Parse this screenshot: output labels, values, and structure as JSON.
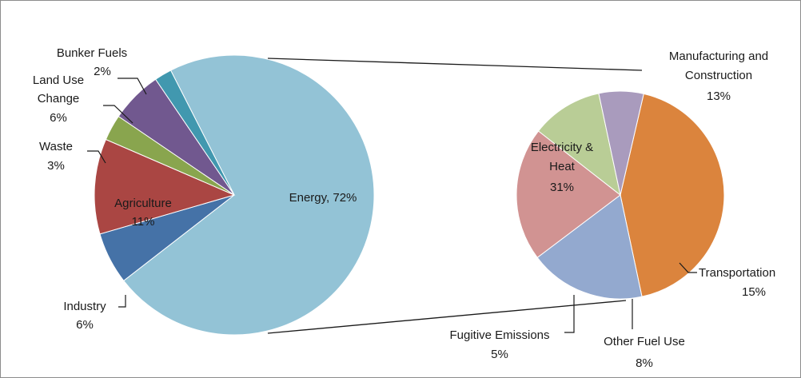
{
  "chart_data": {
    "type": "pie",
    "title": "",
    "main_pie": {
      "slices": [
        {
          "key": "energy",
          "label": "Energy",
          "value": 72,
          "value_text": "72%",
          "color": "#93c3d6"
        },
        {
          "key": "industry",
          "label": "Industry",
          "value": 6,
          "value_text": "6%",
          "color": "#4572a7"
        },
        {
          "key": "agriculture",
          "label": "Agriculture",
          "value": 11,
          "value_text": "11%",
          "color": "#aa4643"
        },
        {
          "key": "waste",
          "label": "Waste",
          "value": 3,
          "value_text": "3%",
          "color": "#89a54e"
        },
        {
          "key": "land_use_change",
          "label": "Land Use Change",
          "value": 6,
          "value_text": "6%",
          "color": "#71588f"
        },
        {
          "key": "bunker_fuels",
          "label": "Bunker Fuels",
          "value": 2,
          "value_text": "2%",
          "color": "#4198af"
        }
      ]
    },
    "breakout_pie": {
      "parent": "Energy",
      "slices": [
        {
          "key": "electricity_heat",
          "label": "Electricity & Heat",
          "value": 31,
          "value_text": "31%",
          "color": "#db843d"
        },
        {
          "key": "manufacturing",
          "label": "Manufacturing and Construction",
          "value": 13,
          "value_text": "13%",
          "color": "#93a9cf"
        },
        {
          "key": "transportation",
          "label": "Transportation",
          "value": 15,
          "value_text": "15%",
          "color": "#d19392"
        },
        {
          "key": "other_fuel_use",
          "label": "Other Fuel Use",
          "value": 8,
          "value_text": "8%",
          "color": "#b9cd96"
        },
        {
          "key": "fugitive_emissions",
          "label": "Fugitive Emissions",
          "value": 5,
          "value_text": "5%",
          "color": "#a99bbd"
        }
      ]
    }
  },
  "labels": {
    "energy": "Energy, 72%",
    "industry_name": "Industry",
    "industry_pct": "6%",
    "agriculture_name": "Agriculture",
    "agriculture_pct": "11%",
    "waste_name": "Waste",
    "waste_pct": "3%",
    "luc_line1": "Land Use",
    "luc_line2": "Change",
    "luc_pct": "6%",
    "bunker_name": "Bunker Fuels",
    "bunker_pct": "2%",
    "elec_line1": "Electricity &",
    "elec_line2": "Heat",
    "elec_pct": "31%",
    "manuf_line1": "Manufacturing and",
    "manuf_line2": "Construction",
    "manuf_pct": "13%",
    "trans_name": "Transportation",
    "trans_pct": "15%",
    "other_name": "Other Fuel Use",
    "other_pct": "8%",
    "fugitive_name": "Fugitive Emissions",
    "fugitive_pct": "5%"
  }
}
